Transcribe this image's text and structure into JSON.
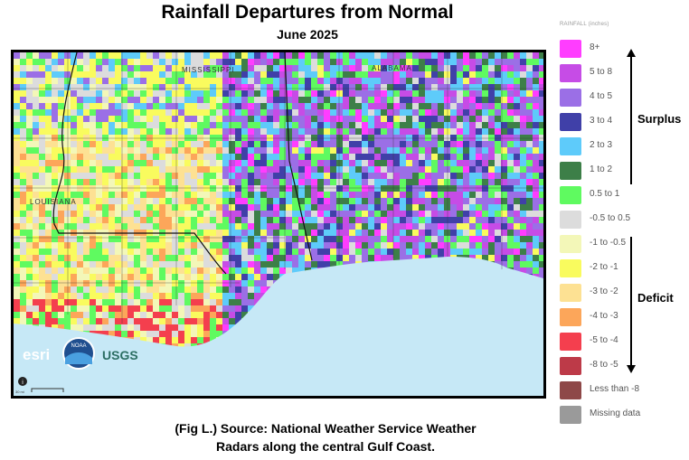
{
  "title": "Rainfall Departures from Normal",
  "subtitle": "June 2025",
  "caption_line1": "(Fig L.) Source: National Weather Service Weather",
  "caption_line2": "Radars along the central Gulf Coast.",
  "map": {
    "state_labels": [
      "MISSISSIPPI",
      "ALABAMA",
      "LOUISIANA"
    ],
    "attribution_logos": [
      "esri",
      "NOAA",
      "USGS"
    ],
    "scale_bar_label": "30 mi",
    "info_icon": "i"
  },
  "legend": {
    "title": "RAINFALL (inches)",
    "items": [
      {
        "label": "8+",
        "color": "#ff3dff"
      },
      {
        "label": "5 to 8",
        "color": "#c64ce6"
      },
      {
        "label": "4 to 5",
        "color": "#9b6fe6"
      },
      {
        "label": "3 to 4",
        "color": "#4040a8"
      },
      {
        "label": "2 to 3",
        "color": "#5ecbfa"
      },
      {
        "label": "1 to 2",
        "color": "#3d7f48"
      },
      {
        "label": "0.5 to 1",
        "color": "#5ffa60"
      },
      {
        "label": "-0.5 to 0.5",
        "color": "#dcdcdc"
      },
      {
        "label": "-1 to -0.5",
        "color": "#f3f7b8"
      },
      {
        "label": "-2 to -1",
        "color": "#f9fb5e"
      },
      {
        "label": "-3 to -2",
        "color": "#fde193"
      },
      {
        "label": "-4 to -3",
        "color": "#fca65a"
      },
      {
        "label": "-5 to -4",
        "color": "#f43f4e"
      },
      {
        "label": "-8 to -5",
        "color": "#bd3a48"
      },
      {
        "label": "Less than -8",
        "color": "#8e4848"
      },
      {
        "label": "Missing data",
        "color": "#9a9a9a"
      }
    ],
    "surplus_label": "Surplus",
    "deficit_label": "Deficit"
  }
}
